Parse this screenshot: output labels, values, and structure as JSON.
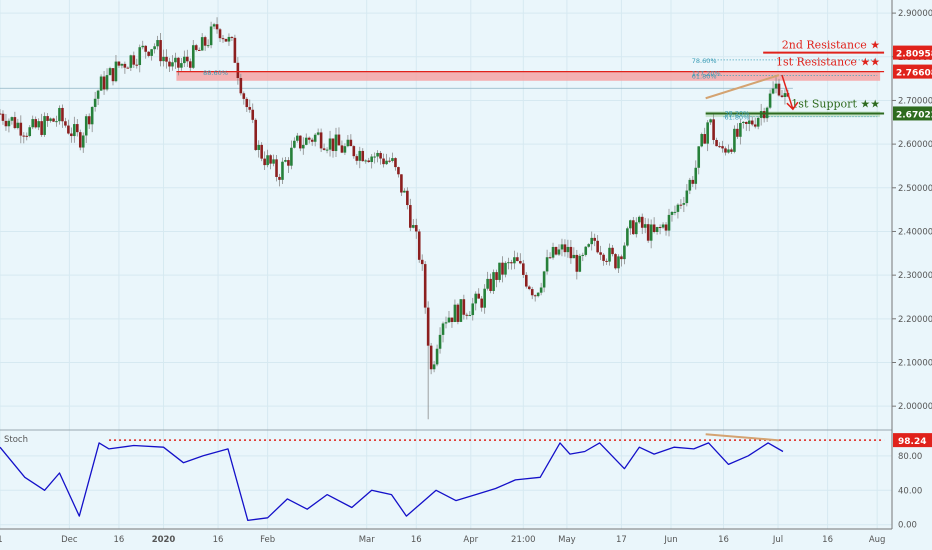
{
  "chart_data": [
    {
      "type": "candlestick",
      "ylim": [
        1.95,
        2.93
      ],
      "y_ticks": [
        "2.90000",
        "2.80000",
        "2.70000",
        "2.60000",
        "2.50000",
        "2.40000",
        "2.30000",
        "2.20000",
        "2.10000",
        "2.00000"
      ],
      "y_tick_values": [
        2.9,
        2.8,
        2.7,
        2.6,
        2.5,
        2.4,
        2.3,
        2.2,
        2.1,
        2.0
      ],
      "x_ticks": [
        "1",
        "Dec",
        "16",
        "2020",
        "16",
        "Feb",
        "Mar",
        "16",
        "Apr",
        "21:00",
        "May",
        "17",
        "Jun",
        "16",
        "Jul",
        "16",
        "Aug"
      ],
      "x_tick_index": [
        0,
        70,
        120,
        165,
        220,
        270,
        370,
        420,
        475,
        528,
        572,
        627,
        677,
        730,
        785,
        835,
        885
      ],
      "ohlc": [],
      "fib_labels": [
        {
          "text": "88.60%",
          "index": 205,
          "price": 2.765
        },
        {
          "text": "78.60%",
          "index": 698,
          "price": 2.793
        },
        {
          "text": "127.20%",
          "index": 698,
          "price": 2.764
        },
        {
          "text": "61.80%",
          "index": 698,
          "price": 2.757
        },
        {
          "text": "38.20%",
          "index": 731,
          "price": 2.672
        },
        {
          "text": "61.80%",
          "index": 731,
          "price": 2.663
        }
      ],
      "levels": {
        "second_resistance": {
          "label": "2nd Resistance ★",
          "value": 2.80958,
          "value_label": "2.80958",
          "color": "#e0221b"
        },
        "first_resistance": {
          "label": "1st Resistance ★★",
          "value": 2.76608,
          "value_label": "2.76608",
          "color": "#e0221b"
        },
        "first_support": {
          "label": "1st Support ★★",
          "value": 2.67022,
          "value_label": "2.67022",
          "color": "#2e6b1f"
        }
      }
    },
    {
      "type": "line",
      "title": "Stoch",
      "ylim": [
        -5,
        110
      ],
      "y_ticks": [
        "80.00",
        "40.00",
        "0.00"
      ],
      "y_tick_values": [
        80,
        40,
        0
      ],
      "overbought_level": 98.24,
      "overbought_label": "98.24",
      "x_index": [
        0,
        25,
        45,
        60,
        80,
        100,
        110,
        135,
        165,
        185,
        205,
        230,
        250,
        270,
        290,
        310,
        330,
        355,
        375,
        395,
        410,
        425,
        440,
        460,
        480,
        500,
        520,
        545,
        565,
        575,
        590,
        605,
        630,
        645,
        660,
        680,
        700,
        715,
        735,
        755,
        775,
        790
      ],
      "values": [
        90,
        55,
        40,
        60,
        10,
        95,
        88,
        92,
        90,
        72,
        80,
        88,
        5,
        8,
        30,
        18,
        35,
        20,
        40,
        35,
        10,
        25,
        40,
        28,
        35,
        42,
        52,
        55,
        95,
        82,
        85,
        95,
        65,
        90,
        82,
        90,
        88,
        95,
        70,
        80,
        95,
        85
      ]
    }
  ],
  "colors": {
    "up": "#26803a",
    "down": "#8c1f1f",
    "resistance": "#e0221b",
    "support": "#2e6b1f",
    "trendline": "#d4a371",
    "stoch_line": "#1410c9",
    "fib_text": "#3b9db6"
  }
}
